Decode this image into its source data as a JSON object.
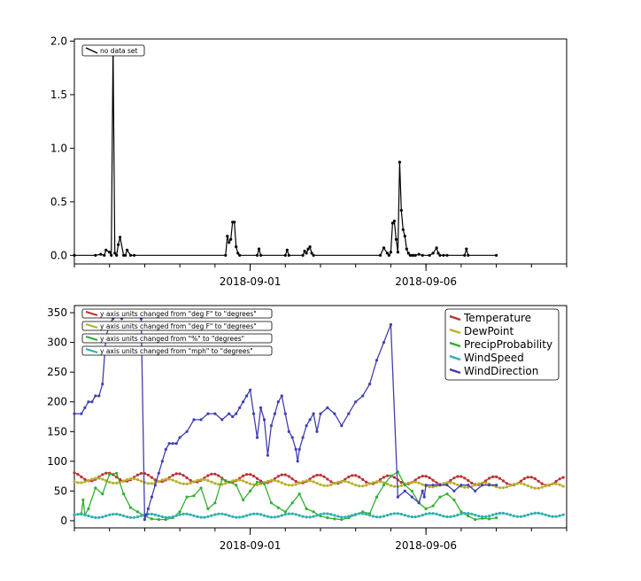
{
  "chart_data": [
    {
      "type": "line",
      "id": "top",
      "title": "",
      "xlabel": "",
      "ylabel": "",
      "x_range": [
        "2018-08-27",
        "2018-09-10"
      ],
      "x_ticks": [
        {
          "label": "2018-09-01",
          "x": "2018-09-01"
        },
        {
          "label": "2018-09-06",
          "x": "2018-09-06"
        }
      ],
      "ylim": [
        -0.08,
        2.02
      ],
      "y_ticks": [
        "0.0",
        "0.5",
        "1.0",
        "1.5",
        "2.0"
      ],
      "grid": false,
      "legend_position": "top-left",
      "legend": [
        "no data set"
      ],
      "series": [
        {
          "name": "no data set",
          "color": "#000000",
          "x": [
            0,
            0.6,
            0.75,
            0.85,
            0.9,
            1.0,
            1.05,
            1.1,
            1.15,
            1.2,
            1.25,
            1.3,
            1.4,
            1.45,
            1.5,
            1.6,
            1.7,
            4.3,
            4.35,
            4.4,
            4.45,
            4.5,
            4.55,
            4.6,
            4.65,
            4.7,
            5.2,
            5.25,
            5.3,
            6.0,
            6.05,
            6.1,
            6.5,
            6.55,
            6.6,
            6.65,
            6.7,
            6.75,
            6.8,
            8.7,
            8.8,
            8.9,
            8.95,
            9.0,
            9.05,
            9.1,
            9.15,
            9.2,
            9.25,
            9.3,
            9.35,
            9.4,
            9.45,
            9.5,
            9.55,
            9.6,
            9.65,
            9.7,
            9.8,
            9.9,
            10.1,
            10.2,
            10.3,
            10.35,
            10.4,
            10.5,
            10.6,
            11.1,
            11.15,
            11.2,
            12.0
          ],
          "y": [
            0,
            0,
            0.01,
            0,
            0.05,
            0.03,
            0,
            1.95,
            0.02,
            0,
            0.1,
            0.17,
            0,
            0,
            0.05,
            0,
            0,
            0,
            0.18,
            0.12,
            0.15,
            0.31,
            0.31,
            0.08,
            0.02,
            0,
            0,
            0.06,
            0,
            0,
            0.05,
            0,
            0,
            0.04,
            0.02,
            0.06,
            0.08,
            0.02,
            0,
            0,
            0.07,
            0.02,
            0,
            0.03,
            0.3,
            0.32,
            0.15,
            0.03,
            0.87,
            0.42,
            0.24,
            0.18,
            0.06,
            0.02,
            0,
            0,
            0,
            0,
            0.01,
            0,
            0,
            0.02,
            0.07,
            0.02,
            0,
            0,
            0,
            0,
            0.06,
            0,
            0
          ],
          "x_unit": "days since 2018-08-27"
        }
      ]
    },
    {
      "type": "line",
      "id": "bottom",
      "title": "",
      "xlabel": "",
      "ylabel": "",
      "x_range": [
        "2018-08-27",
        "2018-09-10"
      ],
      "x_ticks": [
        {
          "label": "2018-09-01",
          "x": "2018-09-01"
        },
        {
          "label": "2018-09-06",
          "x": "2018-09-06"
        }
      ],
      "ylim": [
        -12,
        362
      ],
      "y_ticks": [
        "0",
        "50",
        "100",
        "150",
        "200",
        "250",
        "300",
        "350"
      ],
      "grid": false,
      "legend_position": "top-right",
      "legend": [
        "Temperature",
        "DewPoint",
        "PrecipProbability",
        "WindSpeed",
        "WindDirection"
      ],
      "annotations": [
        {
          "text": "y axis units changed from \"deg F\" to \"degrees\"",
          "color": "#c03030"
        },
        {
          "text": "y axis units changed from \"deg F\" to \"degrees\"",
          "color": "#b8b030"
        },
        {
          "text": "y axis units changed from \"%\" to \"degrees\"",
          "color": "#30b030"
        },
        {
          "text": "y axis units changed from \"mph\" to \"degrees\"",
          "color": "#30b0b0"
        }
      ],
      "series": [
        {
          "name": "Temperature",
          "color": "#c03030",
          "kind": "periodic",
          "base": 74,
          "amp": 7,
          "trend_end": -8,
          "phase": 0.3
        },
        {
          "name": "DewPoint",
          "color": "#b8b030",
          "kind": "periodic",
          "base": 68,
          "amp": 4,
          "trend_end": -10,
          "phase": 0.6
        },
        {
          "name": "PrecipProbability",
          "color": "#30b030",
          "kind": "points",
          "x": [
            0,
            0.2,
            0.25,
            0.3,
            0.4,
            0.6,
            0.8,
            1.0,
            1.2,
            1.4,
            1.6,
            1.8,
            2.0,
            2.2,
            2.4,
            2.6,
            2.8,
            3.0,
            3.2,
            3.4,
            3.6,
            3.8,
            4.0,
            4.2,
            4.4,
            4.6,
            4.8,
            5.0,
            5.2,
            5.4,
            5.6,
            5.8,
            6.0,
            6.2,
            6.4,
            6.6,
            6.8,
            7.0,
            7.2,
            7.4,
            7.6,
            7.8,
            8.0,
            8.2,
            8.4,
            8.6,
            8.8,
            9.0,
            9.2,
            9.4,
            9.6,
            9.8,
            10.0,
            10.2,
            10.4,
            10.6,
            10.8,
            11.0,
            11.2,
            11.4,
            11.6,
            11.8,
            12.0
          ],
          "y": [
            10,
            12,
            35,
            10,
            20,
            55,
            45,
            78,
            80,
            45,
            22,
            15,
            8,
            3,
            2,
            2,
            5,
            15,
            40,
            42,
            55,
            20,
            30,
            70,
            65,
            60,
            35,
            50,
            65,
            62,
            30,
            22,
            15,
            30,
            45,
            20,
            15,
            8,
            5,
            3,
            2,
            5,
            10,
            15,
            12,
            40,
            60,
            75,
            82,
            60,
            50,
            30,
            20,
            25,
            40,
            45,
            35,
            15,
            8,
            2,
            4,
            3,
            5
          ]
        },
        {
          "name": "WindSpeed",
          "color": "#30b0b0",
          "kind": "periodic",
          "base": 8,
          "amp": 3,
          "trend_end": 2,
          "phase": 0.1
        },
        {
          "name": "WindDirection",
          "color": "#4040b0",
          "kind": "points",
          "x": [
            0,
            0.2,
            0.3,
            0.4,
            0.5,
            0.6,
            0.7,
            0.8,
            0.9,
            1.0,
            1.1,
            1.2,
            1.3,
            1.35,
            1.4,
            1.45,
            1.5,
            1.6,
            1.7,
            1.8,
            1.9,
            2.0,
            2.05,
            2.1,
            2.2,
            2.3,
            2.4,
            2.5,
            2.6,
            2.7,
            2.8,
            2.9,
            3.0,
            3.2,
            3.4,
            3.6,
            3.8,
            4.0,
            4.2,
            4.4,
            4.5,
            4.6,
            4.7,
            4.8,
            4.9,
            5.0,
            5.1,
            5.2,
            5.3,
            5.4,
            5.5,
            5.6,
            5.7,
            5.8,
            5.9,
            6.0,
            6.1,
            6.2,
            6.3,
            6.35,
            6.4,
            6.5,
            6.6,
            6.7,
            6.8,
            6.9,
            7.0,
            7.2,
            7.4,
            7.6,
            7.8,
            8.0,
            8.2,
            8.4,
            8.6,
            8.8,
            9.0,
            9.2,
            9.4,
            9.6,
            9.8,
            9.9,
            9.95,
            10.0,
            10.2,
            10.4,
            10.6,
            10.8,
            11.0,
            11.2,
            11.4,
            11.6,
            11.8,
            12.0
          ],
          "y": [
            180,
            180,
            190,
            200,
            200,
            210,
            210,
            230,
            310,
            330,
            340,
            350,
            350,
            340,
            350,
            350,
            350,
            350,
            350,
            345,
            340,
            2,
            10,
            20,
            40,
            60,
            80,
            100,
            120,
            130,
            130,
            130,
            140,
            150,
            170,
            170,
            180,
            180,
            170,
            180,
            175,
            180,
            190,
            200,
            210,
            220,
            180,
            140,
            190,
            170,
            110,
            160,
            180,
            200,
            210,
            180,
            150,
            140,
            120,
            100,
            120,
            140,
            160,
            170,
            180,
            150,
            180,
            190,
            180,
            160,
            180,
            200,
            210,
            230,
            270,
            300,
            330,
            40,
            50,
            40,
            30,
            50,
            40,
            60,
            60,
            60,
            60,
            50,
            60,
            60,
            50,
            60,
            60,
            60
          ]
        }
      ]
    }
  ]
}
